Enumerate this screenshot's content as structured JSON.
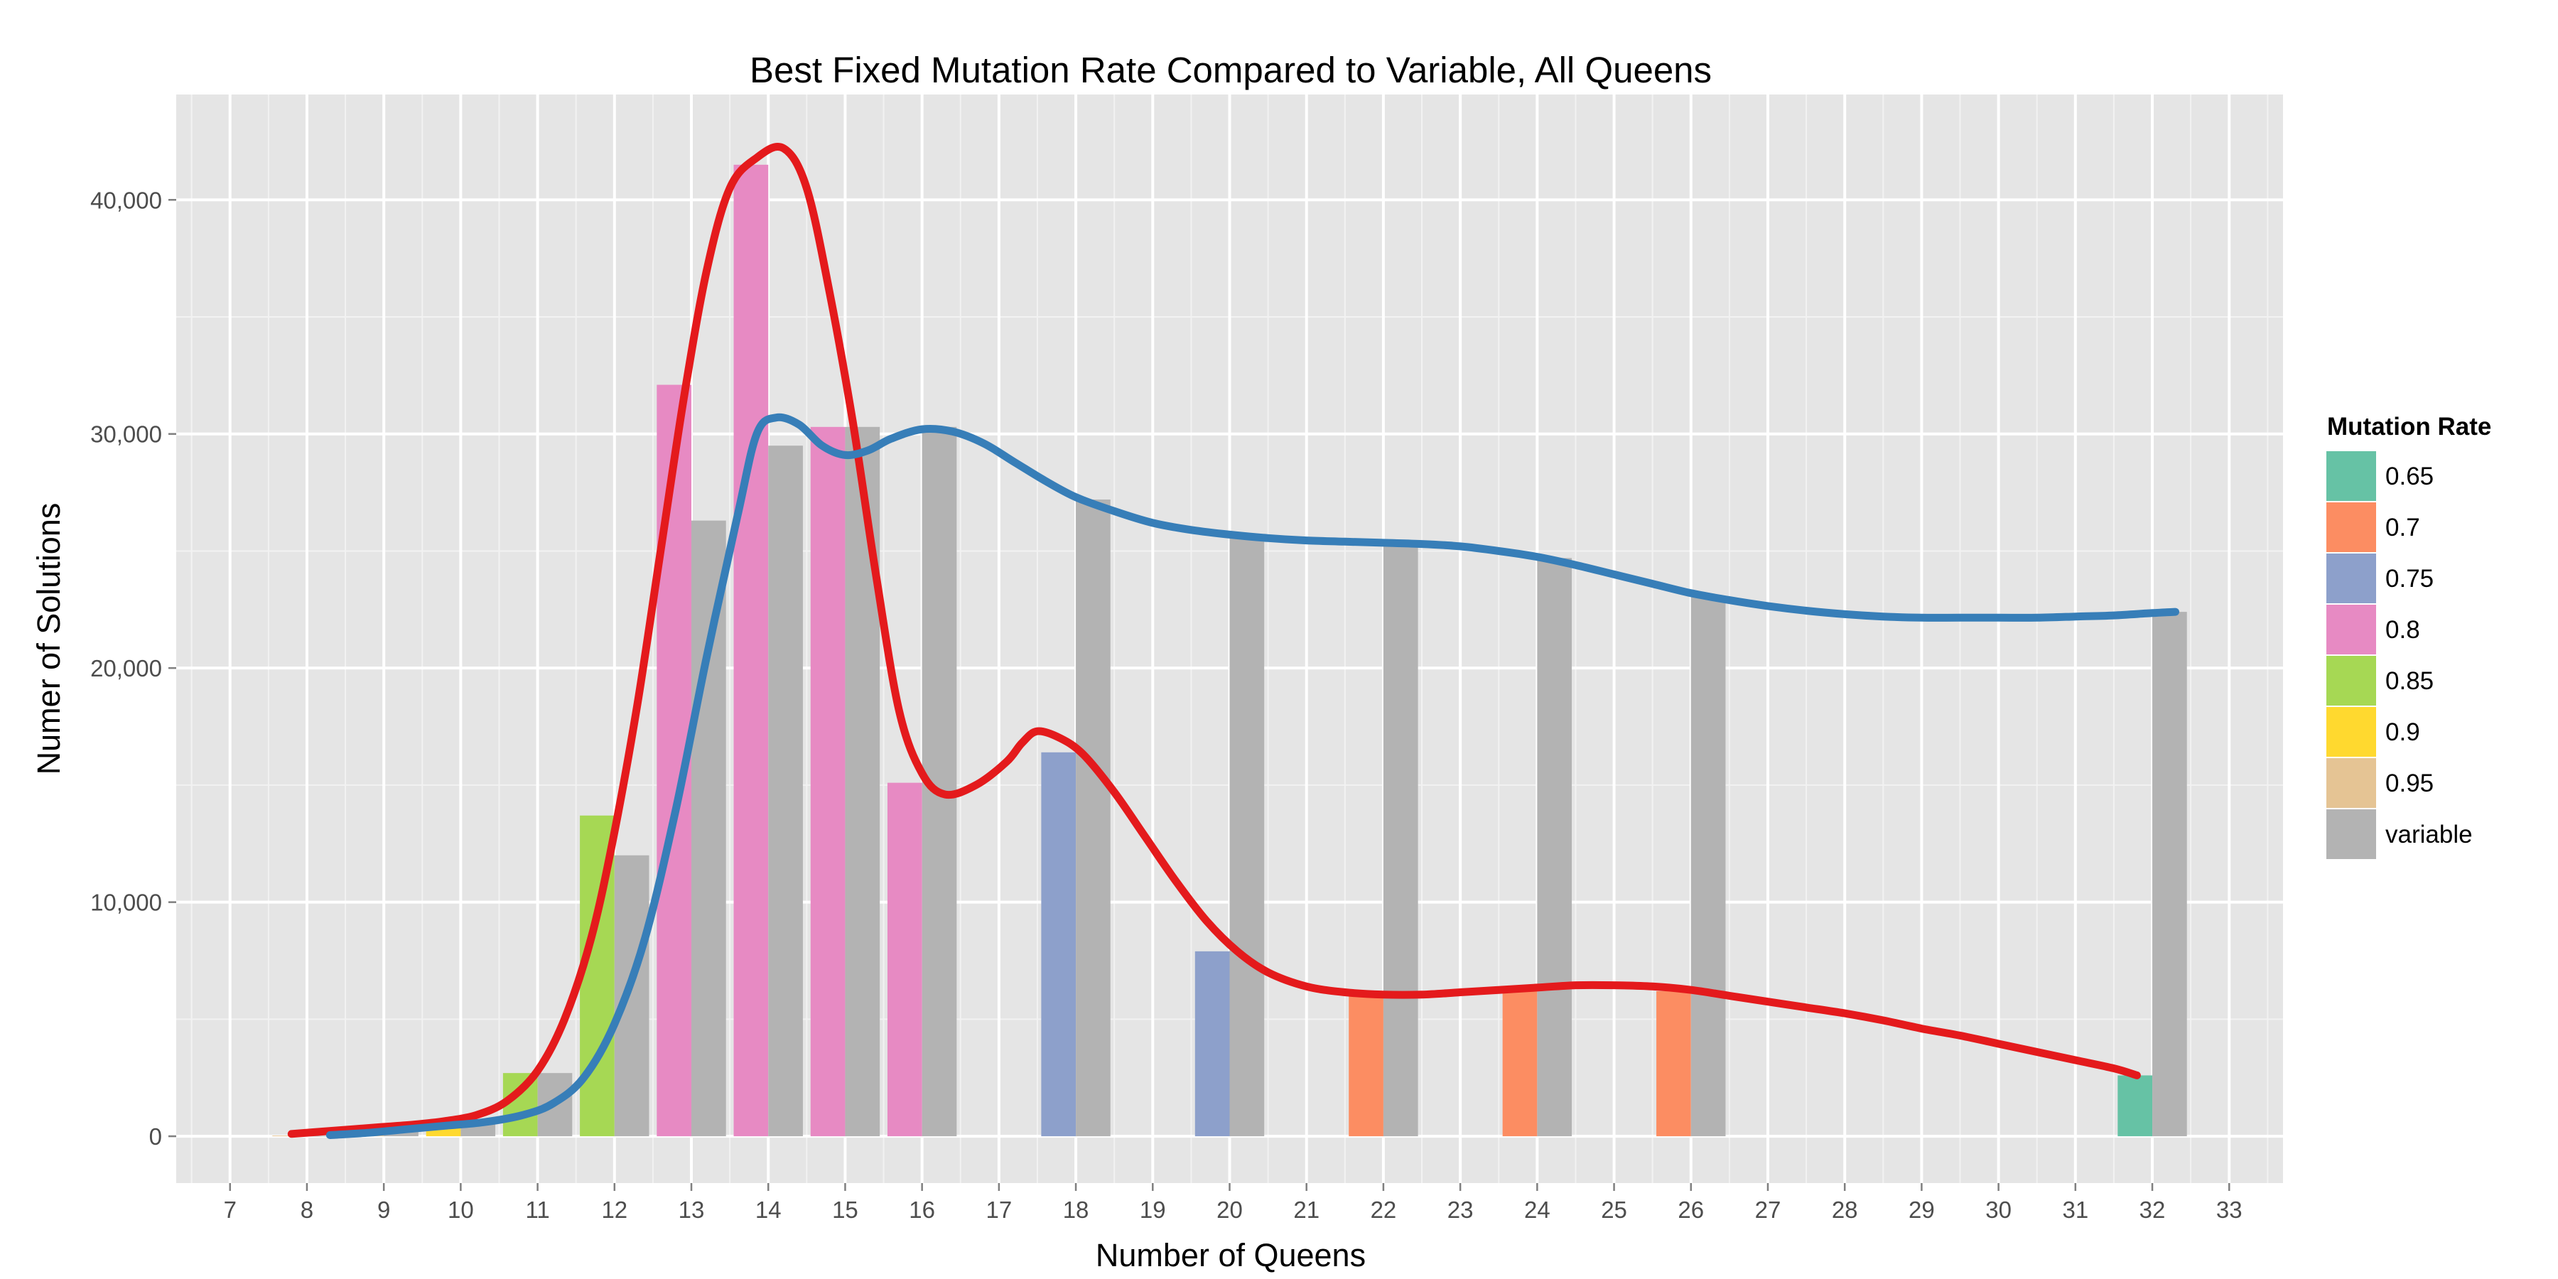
{
  "chart_data": {
    "type": "bar",
    "title": "Best Fixed Mutation Rate Compared to Variable, All Queens",
    "xlabel": "Number of Queens",
    "ylabel": "Numer of Solutions",
    "xlim": [
      6.3,
      33.7
    ],
    "ylim": [
      -2000,
      44500
    ],
    "x_ticks": [
      "7",
      "8",
      "9",
      "10",
      "11",
      "12",
      "13",
      "14",
      "15",
      "16",
      "17",
      "18",
      "19",
      "20",
      "21",
      "22",
      "23",
      "24",
      "25",
      "26",
      "27",
      "28",
      "29",
      "30",
      "31",
      "32",
      "33"
    ],
    "y_ticks": [
      {
        "value": 0,
        "label": "0"
      },
      {
        "value": 10000,
        "label": "10,000"
      },
      {
        "value": 20000,
        "label": "20,000"
      },
      {
        "value": 30000,
        "label": "30,000"
      },
      {
        "value": 40000,
        "label": "40,000"
      }
    ],
    "grid": true,
    "legend": {
      "title": "Mutation Rate",
      "position": "right",
      "entries": [
        {
          "label": "0.65",
          "color": "#66c2a5"
        },
        {
          "label": "0.7",
          "color": "#fc8d62"
        },
        {
          "label": "0.75",
          "color": "#8da0cb"
        },
        {
          "label": "0.8",
          "color": "#e78ac3"
        },
        {
          "label": "0.85",
          "color": "#a6d854"
        },
        {
          "label": "0.9",
          "color": "#ffd92f"
        },
        {
          "label": "0.95",
          "color": "#e5c494"
        },
        {
          "label": "variable",
          "color": "#b3b3b3"
        }
      ]
    },
    "bars": [
      {
        "n": 8,
        "best_rate": "0.95",
        "best": 30,
        "variable": 20
      },
      {
        "n": 9,
        "best_rate": "0.95",
        "best": 300,
        "variable": 300
      },
      {
        "n": 10,
        "best_rate": "0.9",
        "best": 700,
        "variable": 600
      },
      {
        "n": 11,
        "best_rate": "0.85",
        "best": 2700,
        "variable": 2700
      },
      {
        "n": 12,
        "best_rate": "0.85",
        "best": 13700,
        "variable": 12000
      },
      {
        "n": 13,
        "best_rate": "0.8",
        "best": 32100,
        "variable": 26300
      },
      {
        "n": 14,
        "best_rate": "0.8",
        "best": 41500,
        "variable": 29500
      },
      {
        "n": 15,
        "best_rate": "0.8",
        "best": 30300,
        "variable": 30300
      },
      {
        "n": 16,
        "best_rate": "0.8",
        "best": 15100,
        "variable": 30300
      },
      {
        "n": 18,
        "best_rate": "0.75",
        "best": 16400,
        "variable": 27200
      },
      {
        "n": 20,
        "best_rate": "0.75",
        "best": 7900,
        "variable": 25700
      },
      {
        "n": 22,
        "best_rate": "0.7",
        "best": 6100,
        "variable": 25400
      },
      {
        "n": 24,
        "best_rate": "0.7",
        "best": 6400,
        "variable": 24700
      },
      {
        "n": 26,
        "best_rate": "0.7",
        "best": 6200,
        "variable": 23100
      },
      {
        "n": 32,
        "best_rate": "0.65",
        "best": 2600,
        "variable": 22400
      }
    ],
    "lines": [
      {
        "color": "#e41a1c",
        "x": [
          7.8,
          8.2,
          8.6,
          9.0,
          9.4,
          9.8,
          10.2,
          10.6,
          11.0,
          11.35,
          11.7,
          12.0,
          12.3,
          12.6,
          12.9,
          13.2,
          13.5,
          13.85,
          14.2,
          14.5,
          14.8,
          15.1,
          15.4,
          15.7,
          16.0,
          16.3,
          16.7,
          17.1,
          17.3,
          17.5,
          17.8,
          18.1,
          18.5,
          18.9,
          19.3,
          19.7,
          20.1,
          20.5,
          21.0,
          21.5,
          22.0,
          22.5,
          23.0,
          23.5,
          24.0,
          24.5,
          25.0,
          25.5,
          26.0,
          26.5,
          27.0,
          27.5,
          28.0,
          28.5,
          29.0,
          29.5,
          30.0,
          30.5,
          31.0,
          31.5,
          31.8
        ],
        "y": [
          100,
          200,
          300,
          400,
          500,
          650,
          900,
          1500,
          2800,
          5000,
          8500,
          13000,
          18500,
          25000,
          31500,
          37000,
          40500,
          41800,
          42200,
          40500,
          36000,
          30500,
          24000,
          18200,
          15500,
          14600,
          15000,
          16000,
          16800,
          17300,
          17000,
          16300,
          14700,
          12800,
          10900,
          9200,
          7900,
          7000,
          6400,
          6150,
          6050,
          6050,
          6150,
          6250,
          6350,
          6450,
          6450,
          6400,
          6250,
          6000,
          5750,
          5500,
          5250,
          4950,
          4600,
          4300,
          3950,
          3600,
          3250,
          2900,
          2600
        ]
      },
      {
        "color": "#377eb8",
        "x": [
          8.3,
          8.8,
          9.3,
          9.8,
          10.3,
          10.8,
          11.2,
          11.6,
          12.0,
          12.4,
          12.8,
          13.2,
          13.6,
          13.85,
          14.1,
          14.4,
          14.7,
          15.0,
          15.3,
          15.6,
          16.0,
          16.4,
          16.8,
          17.2,
          17.6,
          18.0,
          18.5,
          19.0,
          19.5,
          20.0,
          20.5,
          21.0,
          21.5,
          22.0,
          22.5,
          23.0,
          23.5,
          24.0,
          24.5,
          25.0,
          25.5,
          26.0,
          26.5,
          27.0,
          27.5,
          28.0,
          28.5,
          29.0,
          29.5,
          30.0,
          30.5,
          31.0,
          31.5,
          32.0,
          32.3
        ],
        "y": [
          50,
          150,
          300,
          450,
          600,
          900,
          1400,
          2500,
          4800,
          8500,
          14000,
          20500,
          26500,
          30000,
          30700,
          30400,
          29500,
          29100,
          29300,
          29800,
          30200,
          30100,
          29600,
          28800,
          28000,
          27300,
          26700,
          26200,
          25900,
          25700,
          25550,
          25450,
          25400,
          25350,
          25300,
          25200,
          25000,
          24750,
          24400,
          24000,
          23600,
          23200,
          22900,
          22650,
          22450,
          22300,
          22200,
          22150,
          22150,
          22150,
          22150,
          22200,
          22250,
          22350,
          22400
        ]
      }
    ]
  }
}
